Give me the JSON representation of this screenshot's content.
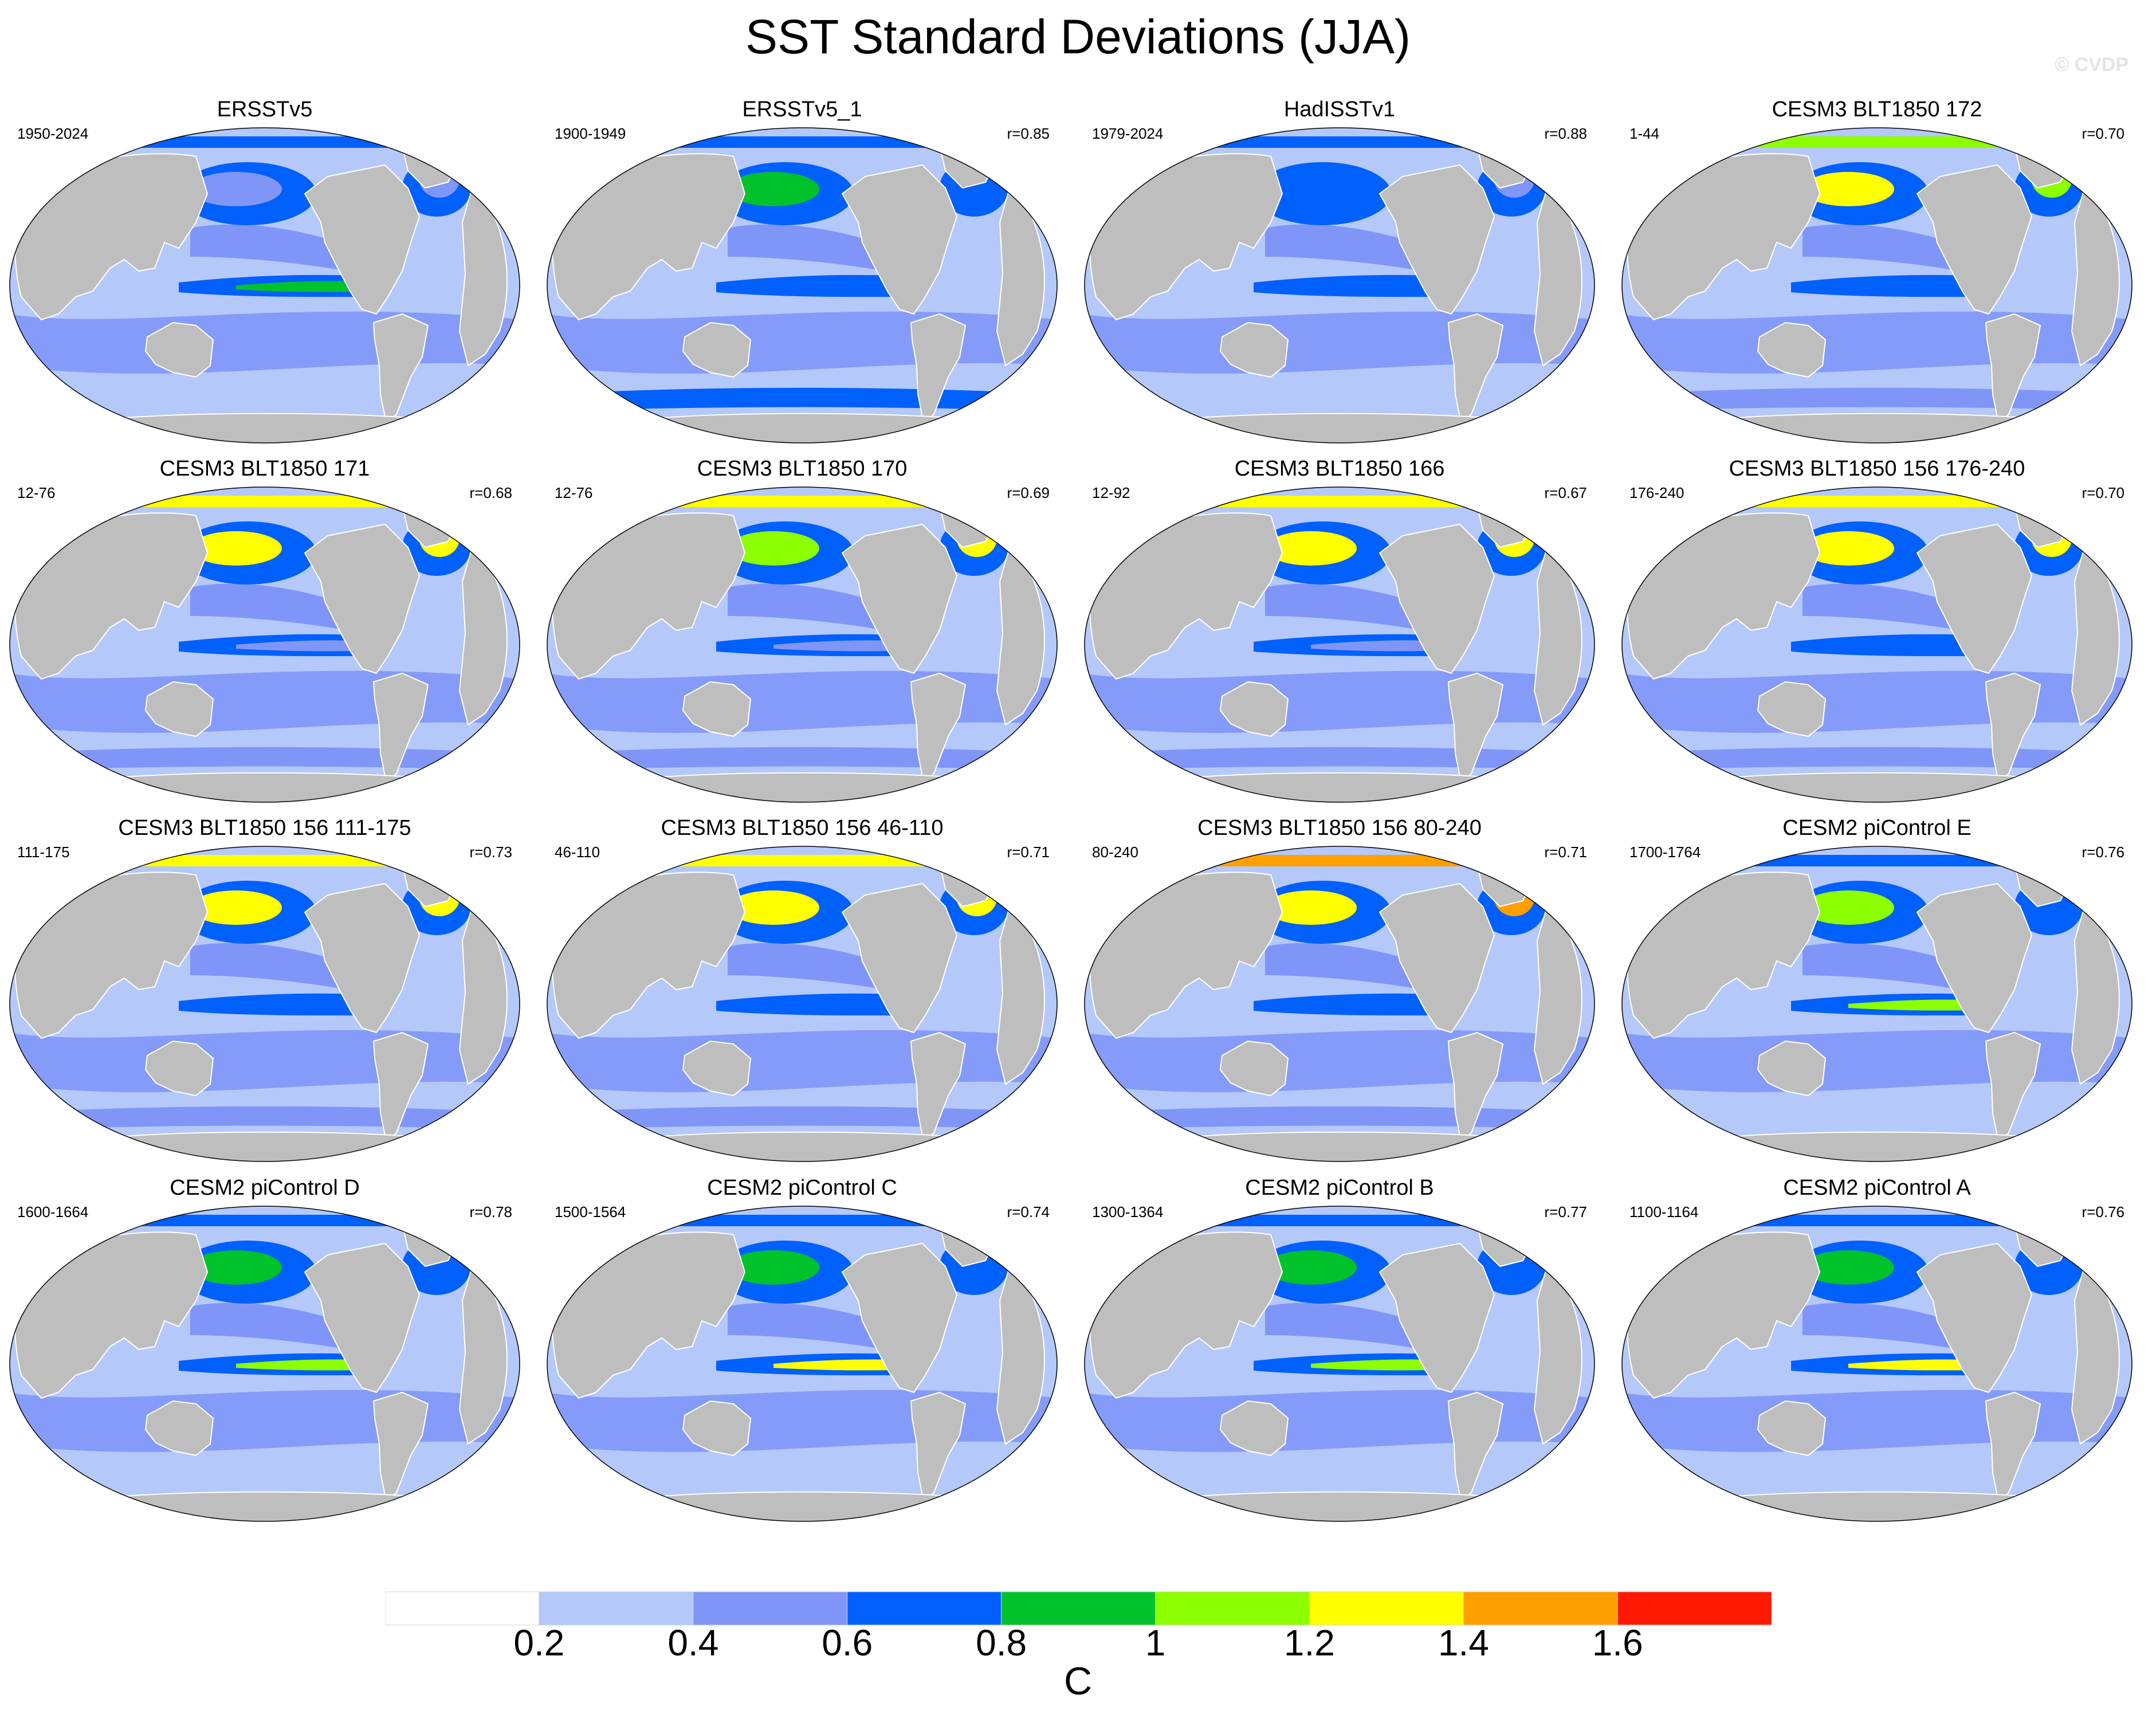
{
  "title": "SST Standard Deviations (JJA)",
  "watermark": "© CVDP",
  "colors": {
    "land": "#bebebe",
    "coast": "#ffffff",
    "levels": [
      "#ffffff",
      "#b4c8fa",
      "#7f96f8",
      "#0060fb",
      "#00c32c",
      "#8cff00",
      "#ffff00",
      "#ff9f00",
      "#ff1900"
    ]
  },
  "panels": [
    {
      "name": "ERSSTv5",
      "period": "1950-2024",
      "r": "",
      "equatorial": 0.9,
      "north_pacific": 0.5,
      "north_atlantic": 0.5,
      "southern_ocean": 0.3
    },
    {
      "name": "ERSSTv5_1",
      "period": "1900-1949",
      "r": "r=0.85",
      "equatorial": 0.7,
      "north_pacific": 0.9,
      "north_atlantic": 0.7,
      "southern_ocean": 0.6
    },
    {
      "name": "HadISSTv1",
      "period": "1979-2024",
      "r": "r=0.88",
      "equatorial": 0.7,
      "north_pacific": 0.6,
      "north_atlantic": 0.5,
      "southern_ocean": 0.2
    },
    {
      "name": "CESM3 BLT1850 172",
      "period": "1-44",
      "r": "r=0.70",
      "equatorial": 0.6,
      "north_pacific": 1.2,
      "north_atlantic": 1.1,
      "southern_ocean": 0.5
    },
    {
      "name": "CESM3 BLT1850 171",
      "period": "12-76",
      "r": "r=0.68",
      "equatorial": 0.5,
      "north_pacific": 1.3,
      "north_atlantic": 1.3,
      "southern_ocean": 0.5
    },
    {
      "name": "CESM3 BLT1850 170",
      "period": "12-76",
      "r": "r=0.69",
      "equatorial": 0.5,
      "north_pacific": 1.1,
      "north_atlantic": 1.3,
      "southern_ocean": 0.5
    },
    {
      "name": "CESM3 BLT1850 166",
      "period": "12-92",
      "r": "r=0.67",
      "equatorial": 0.5,
      "north_pacific": 1.2,
      "north_atlantic": 1.3,
      "southern_ocean": 0.5
    },
    {
      "name": "CESM3 BLT1850 156 176-240",
      "period": "176-240",
      "r": "r=0.70",
      "equatorial": 0.7,
      "north_pacific": 1.2,
      "north_atlantic": 1.3,
      "southern_ocean": 0.5
    },
    {
      "name": "CESM3 BLT1850 156 111-175",
      "period": "111-175",
      "r": "r=0.73",
      "equatorial": 0.7,
      "north_pacific": 1.3,
      "north_atlantic": 1.3,
      "southern_ocean": 0.5
    },
    {
      "name": "CESM3 BLT1850 156 46-110",
      "period": "46-110",
      "r": "r=0.71",
      "equatorial": 0.7,
      "north_pacific": 1.3,
      "north_atlantic": 1.3,
      "southern_ocean": 0.5
    },
    {
      "name": "CESM3 BLT1850 156 80-240",
      "period": "80-240",
      "r": "r=0.71",
      "equatorial": 0.7,
      "north_pacific": 1.3,
      "north_atlantic": 1.4,
      "southern_ocean": 0.5
    },
    {
      "name": "CESM2 piControl E",
      "period": "1700-1764",
      "r": "r=0.76",
      "equatorial": 1.1,
      "north_pacific": 1.0,
      "north_atlantic": 0.7,
      "southern_ocean": 0.3
    },
    {
      "name": "CESM2 piControl D",
      "period": "1600-1664",
      "r": "r=0.78",
      "equatorial": 1.1,
      "north_pacific": 0.9,
      "north_atlantic": 0.7,
      "southern_ocean": 0.3
    },
    {
      "name": "CESM2 piControl C",
      "period": "1500-1564",
      "r": "r=0.74",
      "equatorial": 1.3,
      "north_pacific": 0.9,
      "north_atlantic": 0.7,
      "southern_ocean": 0.3
    },
    {
      "name": "CESM2 piControl B",
      "period": "1300-1364",
      "r": "r=0.77",
      "equatorial": 1.1,
      "north_pacific": 0.9,
      "north_atlantic": 0.7,
      "southern_ocean": 0.3
    },
    {
      "name": "CESM2 piControl A",
      "period": "1100-1164",
      "r": "r=0.76",
      "equatorial": 1.2,
      "north_pacific": 0.9,
      "north_atlantic": 0.7,
      "southern_ocean": 0.3
    }
  ],
  "colorbar": {
    "boundaries": [
      0.2,
      0.4,
      0.6,
      0.8,
      1.0,
      1.2,
      1.4,
      1.6
    ],
    "labels": [
      "0.2",
      "0.4",
      "0.6",
      "0.8",
      "1",
      "1.2",
      "1.4",
      "1.6"
    ],
    "units": "C"
  }
}
